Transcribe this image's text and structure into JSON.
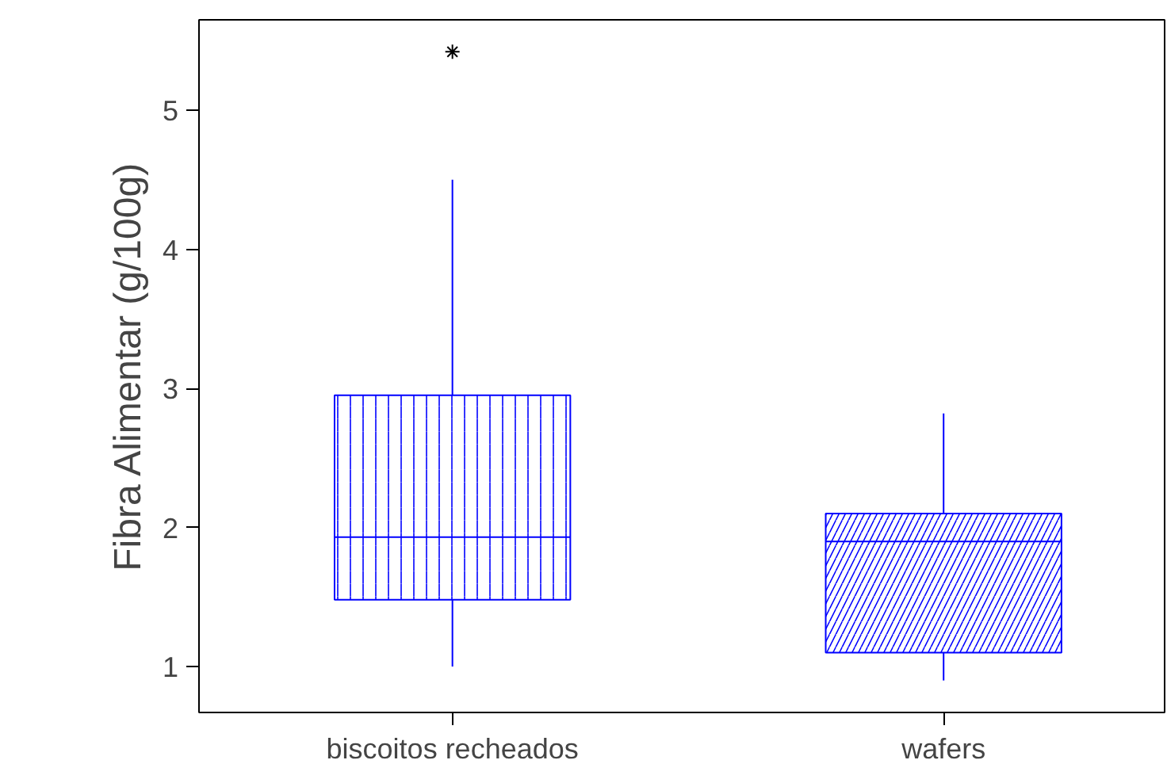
{
  "chart_data": {
    "type": "box",
    "ylabel": "Fibra Alimentar (g/100g)",
    "categories": [
      "biscoitos recheados",
      "wafers"
    ],
    "series": [
      {
        "color": "#0000ff",
        "boxes": [
          {
            "low": 1.0,
            "q1": 1.48,
            "median": 1.93,
            "q3": 2.95,
            "high": 4.5,
            "outliers": [
              5.42
            ]
          },
          {
            "low": 0.9,
            "q1": 1.1,
            "median": 1.9,
            "q3": 2.1,
            "high": 2.82
          }
        ]
      }
    ],
    "ylim": [
      0.67,
      5.65
    ],
    "yticks": [
      1,
      2,
      3,
      4,
      5
    ],
    "grid": false
  }
}
